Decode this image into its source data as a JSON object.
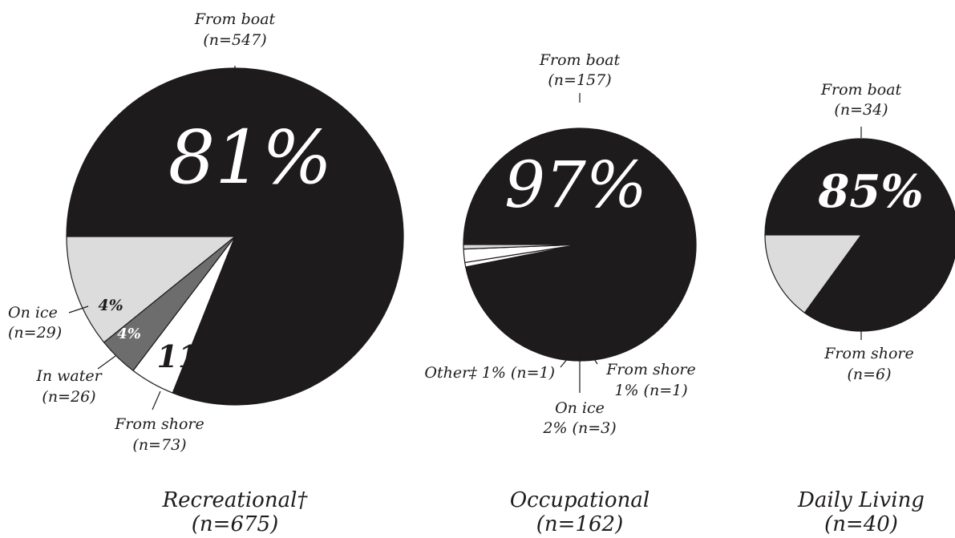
{
  "chart_data": [
    {
      "type": "pie",
      "title": "Recreational†",
      "subtitle": "(n=675)",
      "start_angle": 180,
      "slices": [
        {
          "category": "From boat",
          "n_label": "(n=547)",
          "value": 547,
          "pct_label": "81%",
          "color": "#1e1b1c"
        },
        {
          "category": "On ice",
          "n_label": "(n=29)",
          "value": 29,
          "pct_label": "4%",
          "color": "#ffffff"
        },
        {
          "category": "In water",
          "n_label": "(n=26)",
          "value": 26,
          "pct_label": "4%",
          "color": "#6e6d6e"
        },
        {
          "category": "From shore",
          "n_label": "(n=73)",
          "value": 73,
          "pct_label": "11%",
          "color": "#dcdcdc"
        }
      ]
    },
    {
      "type": "pie",
      "title": "Occupational",
      "subtitle": "(n=162)",
      "start_angle": 180,
      "slices": [
        {
          "category": "From boat",
          "n_label": "(n=157)",
          "value": 157,
          "pct_label": "97%",
          "color": "#1e1b1c"
        },
        {
          "category": "Other‡ 1% (n=1)",
          "n_label": "",
          "value": 1,
          "pct_label": "",
          "color": "#ffffff"
        },
        {
          "category": "On ice",
          "n_label": "2% (n=3)",
          "value": 3,
          "pct_label": "",
          "color": "#ffffff"
        },
        {
          "category": "From shore",
          "n_label": "1% (n=1)",
          "value": 1,
          "pct_label": "",
          "color": "#dcdcdc"
        }
      ]
    },
    {
      "type": "pie",
      "title": "Daily Living",
      "subtitle": "(n=40)",
      "start_angle": 180,
      "slices": [
        {
          "category": "From boat",
          "n_label": "(n=34)",
          "value": 34,
          "pct_label": "85%",
          "color": "#1e1b1c"
        },
        {
          "category": "From shore",
          "n_label": "(n=6)",
          "value": 6,
          "pct_label": "15%",
          "color": "#dcdcdc"
        }
      ]
    }
  ]
}
